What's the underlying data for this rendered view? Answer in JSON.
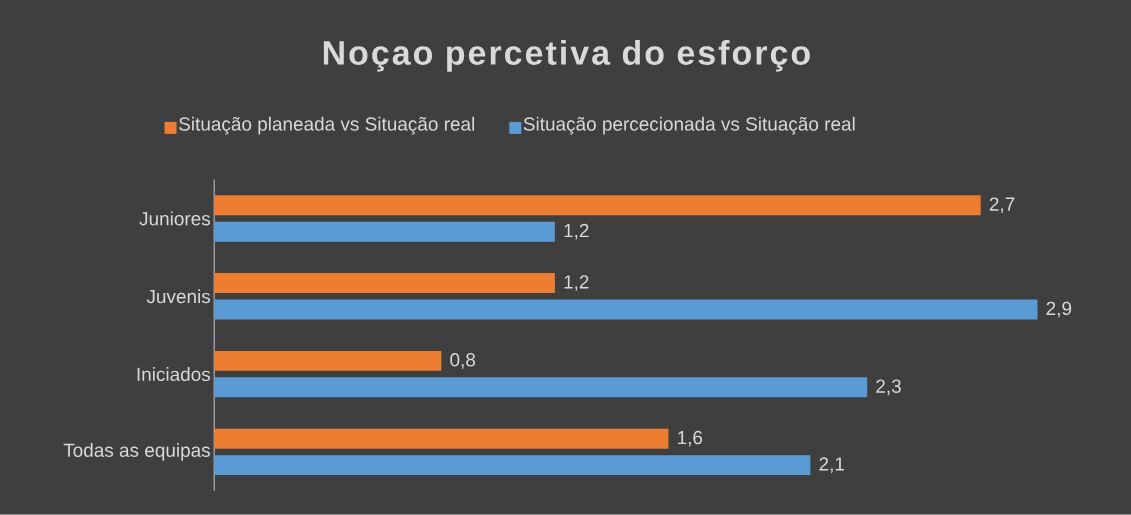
{
  "chart_data": {
    "type": "bar",
    "orientation": "horizontal",
    "title": "Noçao percetiva do esforço",
    "categories": [
      "Juniores",
      "Juvenis",
      "Iniciados",
      "Todas as equipas"
    ],
    "series": [
      {
        "name": "Situação planeada vs Situação real",
        "color": "#ed7d31",
        "values": [
          2.7,
          1.2,
          0.8,
          1.6
        ],
        "value_labels": [
          "2,7",
          "1,2",
          "0,8",
          "1,6"
        ]
      },
      {
        "name": "Situação percecionada vs Situação real",
        "color": "#5b9bd5",
        "values": [
          1.2,
          2.9,
          2.3,
          2.1
        ],
        "value_labels": [
          "1,2",
          "2,9",
          "2,3",
          "2,1"
        ]
      }
    ],
    "legend": "top"
  }
}
